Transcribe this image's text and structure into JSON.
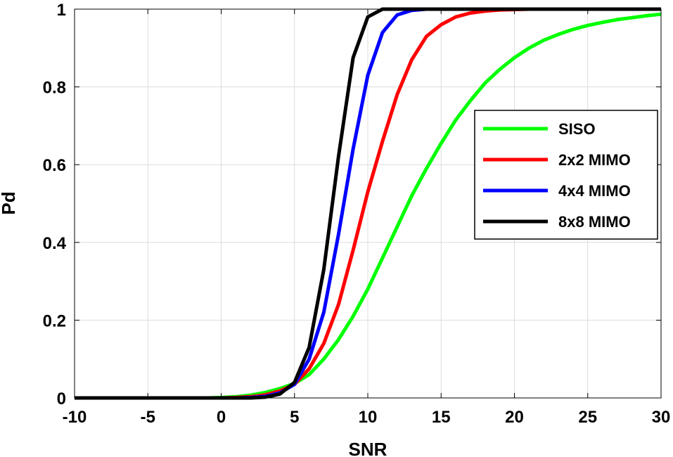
{
  "chart_data": {
    "type": "line",
    "title": "",
    "xlabel": "SNR",
    "ylabel": "Pd",
    "xlim": [
      -10,
      30
    ],
    "ylim": [
      0,
      1
    ],
    "xticks": [
      -10,
      -5,
      0,
      5,
      10,
      15,
      20,
      25,
      30
    ],
    "yticks": [
      0,
      0.2,
      0.4,
      0.6,
      0.8,
      1
    ],
    "xtick_labels": [
      "-10",
      "-5",
      "0",
      "5",
      "10",
      "15",
      "20",
      "25",
      "30"
    ],
    "ytick_labels": [
      "0",
      "0.2",
      "0.4",
      "0.6",
      "0.8",
      "1"
    ],
    "grid": true,
    "legend_position": "right",
    "x": [
      -10,
      -9,
      -8,
      -7,
      -6,
      -5,
      -4,
      -3,
      -2,
      -1,
      0,
      1,
      2,
      3,
      4,
      5,
      6,
      7,
      8,
      9,
      10,
      11,
      12,
      13,
      14,
      15,
      16,
      17,
      18,
      19,
      20,
      21,
      22,
      23,
      24,
      25,
      26,
      27,
      28,
      29,
      30
    ],
    "series": [
      {
        "name": "SISO",
        "color": "#00ff00",
        "values": [
          0,
          0,
          0,
          0,
          0,
          0,
          0,
          0,
          0,
          0,
          0.001,
          0.003,
          0.007,
          0.014,
          0.024,
          0.037,
          0.06,
          0.1,
          0.15,
          0.21,
          0.28,
          0.36,
          0.44,
          0.52,
          0.59,
          0.655,
          0.715,
          0.765,
          0.81,
          0.845,
          0.875,
          0.9,
          0.92,
          0.935,
          0.948,
          0.958,
          0.966,
          0.973,
          0.978,
          0.983,
          0.987
        ]
      },
      {
        "name": "2x2 MIMO",
        "color": "#ff0000",
        "values": [
          0,
          0,
          0,
          0,
          0,
          0,
          0,
          0,
          0,
          0,
          0,
          0.001,
          0.003,
          0.008,
          0.018,
          0.035,
          0.075,
          0.14,
          0.24,
          0.38,
          0.53,
          0.66,
          0.78,
          0.87,
          0.93,
          0.96,
          0.98,
          0.99,
          0.995,
          0.998,
          0.999,
          1,
          1,
          1,
          1,
          1,
          1,
          1,
          1,
          1,
          1
        ]
      },
      {
        "name": "4x4 MIMO",
        "color": "#0000ff",
        "values": [
          0,
          0,
          0,
          0,
          0,
          0,
          0,
          0,
          0,
          0,
          0,
          0,
          0.001,
          0.004,
          0.013,
          0.035,
          0.1,
          0.22,
          0.42,
          0.64,
          0.83,
          0.94,
          0.985,
          0.997,
          1,
          1,
          1,
          1,
          1,
          1,
          1,
          1,
          1,
          1,
          1,
          1,
          1,
          1,
          1,
          1,
          1
        ]
      },
      {
        "name": "8x8 MIMO",
        "color": "#000000",
        "values": [
          0,
          0,
          0,
          0,
          0,
          0,
          0,
          0,
          0,
          0,
          0,
          0,
          0,
          0.002,
          0.01,
          0.04,
          0.13,
          0.33,
          0.62,
          0.875,
          0.98,
          1,
          1,
          1,
          1,
          1,
          1,
          1,
          1,
          1,
          1,
          1,
          1,
          1,
          1,
          1,
          1,
          1,
          1,
          1,
          1
        ]
      }
    ]
  }
}
